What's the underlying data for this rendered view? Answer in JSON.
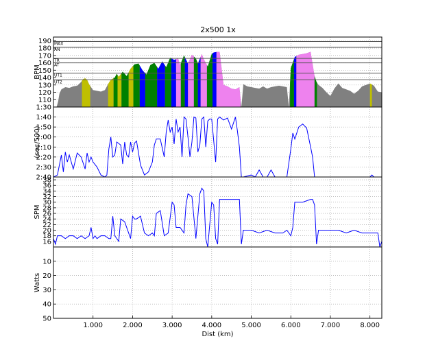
{
  "title": "2x500 1x",
  "colors": {
    "hr_fill": "#808080",
    "zone_ut2": "#bfbf00",
    "zone_ut1": "#008000",
    "zone_at": "#0000ff",
    "zone_tr": "#ee82ee",
    "line": "#0000ff",
    "grid": "#999999"
  },
  "chart_data": [
    {
      "type": "area",
      "ylabel": "BPM",
      "xlim": [
        0,
        8.3
      ],
      "ylim": [
        100,
        195
      ],
      "yticks": [
        110,
        120,
        130,
        140,
        150,
        160,
        170,
        180,
        190
      ],
      "zone_lines": [
        {
          "label": "MAX",
          "value": 189
        },
        {
          "label": "AN",
          "value": 181
        },
        {
          "label": "TR",
          "value": 166
        },
        {
          "label": "AT",
          "value": 160
        },
        {
          "label": "UT1",
          "value": 146
        },
        {
          "label": "UT2",
          "value": 137
        }
      ],
      "series": [
        {
          "x": [
            0.0,
            0.08,
            0.12,
            0.15,
            0.2,
            0.3,
            0.4,
            0.5,
            0.6,
            0.7,
            0.75,
            0.8,
            0.85,
            0.9,
            0.95,
            1.0,
            1.1,
            1.2,
            1.3,
            1.38,
            1.45,
            1.55,
            1.6,
            1.65,
            1.75,
            1.85,
            1.95,
            2.05,
            2.15,
            2.25,
            2.35,
            2.45,
            2.55,
            2.65,
            2.75,
            2.85,
            2.95,
            3.05,
            3.15,
            3.2,
            3.3,
            3.4,
            3.5,
            3.6,
            3.65,
            3.75,
            3.8,
            3.9,
            4.0,
            4.05,
            4.15,
            4.2,
            4.3,
            4.4,
            4.5,
            4.6,
            4.7,
            4.75,
            4.8,
            4.9,
            5.0,
            5.1,
            5.2,
            5.3,
            5.4,
            5.5,
            5.6,
            5.7,
            5.8,
            5.9,
            5.95,
            6.0,
            6.1,
            6.2,
            6.3,
            6.4,
            6.5,
            6.6,
            6.65,
            6.7,
            6.8,
            6.9,
            7.0,
            7.1,
            7.2,
            7.3,
            7.4,
            7.5,
            7.6,
            7.7,
            7.8,
            7.9,
            8.0,
            8.1,
            8.2,
            8.3
          ],
          "y": [
            100,
            100,
            108,
            118,
            124,
            127,
            126,
            128,
            129,
            134,
            138,
            139,
            137,
            131,
            127,
            123,
            122,
            121,
            123,
            131,
            137,
            140,
            145,
            141,
            148,
            142,
            152,
            158,
            159,
            150,
            144,
            157,
            160,
            152,
            162,
            154,
            167,
            164,
            166,
            157,
            170,
            159,
            171,
            166,
            159,
            172,
            165,
            155,
            172,
            174,
            175,
            175,
            130,
            128,
            125,
            124,
            127,
            100,
            131,
            128,
            127,
            126,
            125,
            128,
            125,
            127,
            128,
            129,
            128,
            127,
            100,
            153,
            168,
            171,
            172,
            173,
            175,
            142,
            134,
            130,
            126,
            120,
            115,
            125,
            132,
            126,
            124,
            122,
            118,
            122,
            128,
            130,
            132,
            129,
            121,
            120
          ]
        }
      ],
      "zones_shaded": [
        {
          "zone": "UT2",
          "x0": 0.72,
          "x1": 0.93
        },
        {
          "zone": "UT2",
          "x0": 1.38,
          "x1": 1.52
        },
        {
          "zone": "UT1",
          "x0": 1.52,
          "x1": 1.62
        },
        {
          "zone": "UT2",
          "x0": 1.62,
          "x1": 1.72
        },
        {
          "zone": "UT1",
          "x0": 1.72,
          "x1": 1.9
        },
        {
          "zone": "UT2",
          "x0": 1.9,
          "x1": 2.02
        },
        {
          "zone": "UT1",
          "x0": 2.02,
          "x1": 2.18
        },
        {
          "zone": "AT",
          "x0": 2.18,
          "x1": 2.32
        },
        {
          "zone": "UT1",
          "x0": 2.32,
          "x1": 2.62
        },
        {
          "zone": "AT",
          "x0": 2.62,
          "x1": 2.82
        },
        {
          "zone": "UT1",
          "x0": 2.82,
          "x1": 2.98
        },
        {
          "zone": "AT",
          "x0": 2.98,
          "x1": 3.1
        },
        {
          "zone": "TR",
          "x0": 3.1,
          "x1": 3.22
        },
        {
          "zone": "UT1",
          "x0": 3.22,
          "x1": 3.32
        },
        {
          "zone": "AT",
          "x0": 3.32,
          "x1": 3.4
        },
        {
          "zone": "TR",
          "x0": 3.4,
          "x1": 3.55
        },
        {
          "zone": "UT1",
          "x0": 3.55,
          "x1": 3.65
        },
        {
          "zone": "AT",
          "x0": 3.65,
          "x1": 3.72
        },
        {
          "zone": "TR",
          "x0": 3.72,
          "x1": 3.88
        },
        {
          "zone": "UT1",
          "x0": 3.88,
          "x1": 4.02
        },
        {
          "zone": "AT",
          "x0": 4.02,
          "x1": 4.12
        },
        {
          "zone": "TR",
          "x0": 4.12,
          "x1": 4.73
        },
        {
          "zone": "UT1",
          "x0": 5.98,
          "x1": 6.08
        },
        {
          "zone": "AT",
          "x0": 6.08,
          "x1": 6.14
        },
        {
          "zone": "TR",
          "x0": 6.14,
          "x1": 6.6
        },
        {
          "zone": "UT1",
          "x0": 6.6,
          "x1": 6.66
        },
        {
          "zone": "UT2",
          "x0": 8.0,
          "x1": 8.05
        }
      ]
    },
    {
      "type": "line",
      "ylabel": "(sec/500)",
      "xlim": [
        0,
        8.3
      ],
      "ylim": [
        160,
        90
      ],
      "yticks": [
        90,
        100,
        110,
        120,
        130,
        140,
        150,
        160
      ],
      "ytick_labels": [
        "1:30",
        "1:40",
        "1:50",
        "2:00",
        "2:10",
        "2:20",
        "2:30",
        "2:40"
      ],
      "series": [
        {
          "x": [
            0.0,
            0.1,
            0.15,
            0.2,
            0.25,
            0.3,
            0.35,
            0.4,
            0.5,
            0.6,
            0.7,
            0.8,
            0.85,
            0.9,
            0.95,
            1.0,
            1.1,
            1.2,
            1.3,
            1.35,
            1.4,
            1.45,
            1.5,
            1.55,
            1.6,
            1.7,
            1.75,
            1.8,
            1.85,
            1.9,
            1.95,
            2.0,
            2.05,
            2.1,
            2.2,
            2.3,
            2.4,
            2.5,
            2.55,
            2.6,
            2.7,
            2.8,
            2.85,
            2.9,
            2.95,
            3.0,
            3.05,
            3.1,
            3.15,
            3.2,
            3.25,
            3.3,
            3.35,
            3.4,
            3.45,
            3.5,
            3.55,
            3.6,
            3.65,
            3.7,
            3.75,
            3.8,
            3.85,
            3.9,
            3.95,
            4.0,
            4.1,
            4.15,
            4.2,
            4.3,
            4.4,
            4.5,
            4.6,
            4.65,
            4.7,
            4.75,
            4.8,
            5.0,
            5.1,
            5.2,
            5.3,
            5.4,
            5.5,
            5.6,
            5.7,
            5.8,
            5.9,
            6.0,
            6.05,
            6.1,
            6.2,
            6.3,
            6.4,
            6.5,
            6.55,
            6.6,
            6.65,
            6.7,
            6.8,
            7.0,
            7.2,
            7.4,
            7.6,
            7.8,
            8.0,
            8.05,
            8.1,
            8.2,
            8.3
          ],
          "y": [
            160,
            158,
            148,
            138,
            155,
            135,
            145,
            138,
            152,
            136,
            140,
            152,
            136,
            145,
            140,
            145,
            150,
            158,
            160,
            158,
            132,
            120,
            140,
            138,
            125,
            128,
            147,
            125,
            138,
            140,
            125,
            135,
            126,
            124,
            148,
            158,
            155,
            145,
            128,
            122,
            122,
            140,
            115,
            103,
            115,
            110,
            127,
            102,
            115,
            110,
            140,
            100,
            102,
            120,
            140,
            125,
            100,
            101,
            135,
            128,
            102,
            100,
            130,
            104,
            102,
            102,
            145,
            102,
            100,
            103,
            101,
            112,
            100,
            114,
            130,
            160,
            160,
            158,
            160,
            153,
            160,
            160,
            153,
            160,
            160,
            160,
            160,
            132,
            116,
            122,
            110,
            107,
            111,
            130,
            140,
            160,
            160,
            160,
            160,
            160,
            160,
            160,
            160,
            160,
            160,
            158,
            160,
            160,
            160
          ]
        }
      ]
    },
    {
      "type": "line",
      "ylabel": "SPM",
      "xlim": [
        0,
        8.3
      ],
      "ylim": [
        14,
        39
      ],
      "yticks": [
        16,
        18,
        20,
        22,
        24,
        26,
        28,
        30,
        32,
        34,
        36,
        38
      ],
      "series": [
        {
          "x": [
            0.0,
            0.05,
            0.1,
            0.2,
            0.3,
            0.4,
            0.5,
            0.6,
            0.7,
            0.8,
            0.9,
            0.95,
            1.0,
            1.05,
            1.1,
            1.2,
            1.3,
            1.4,
            1.45,
            1.5,
            1.55,
            1.6,
            1.65,
            1.7,
            1.8,
            1.9,
            1.95,
            2.0,
            2.05,
            2.1,
            2.2,
            2.3,
            2.4,
            2.5,
            2.55,
            2.6,
            2.7,
            2.8,
            2.9,
            3.0,
            3.05,
            3.1,
            3.2,
            3.3,
            3.35,
            3.4,
            3.5,
            3.6,
            3.7,
            3.75,
            3.8,
            3.85,
            3.9,
            4.0,
            4.05,
            4.1,
            4.15,
            4.2,
            4.4,
            4.6,
            4.7,
            4.75,
            4.8,
            5.0,
            5.2,
            5.4,
            5.6,
            5.8,
            5.9,
            6.0,
            6.05,
            6.1,
            6.3,
            6.5,
            6.55,
            6.6,
            6.65,
            6.7,
            7.0,
            7.2,
            7.4,
            7.6,
            7.8,
            8.0,
            8.2,
            8.25,
            8.3
          ],
          "y": [
            17,
            15,
            18,
            18,
            17,
            18,
            18,
            17,
            18,
            17,
            18,
            21,
            17,
            18,
            17,
            18,
            18,
            17,
            17,
            25,
            18,
            17,
            16,
            24,
            23,
            19,
            17,
            25,
            24,
            24,
            25,
            19,
            18,
            19,
            18,
            26,
            27,
            18,
            19,
            30,
            29,
            21,
            21,
            19,
            29,
            33,
            32,
            17,
            33,
            35,
            34,
            17,
            14,
            30,
            29,
            17,
            15,
            31,
            31,
            31,
            31,
            15,
            20,
            20,
            19,
            20,
            19,
            19,
            20,
            18,
            21,
            30,
            30,
            31,
            31,
            29,
            15,
            20,
            20,
            20,
            19,
            20,
            19,
            19,
            19,
            14,
            16
          ]
        }
      ]
    },
    {
      "type": "line",
      "xlabel": "Dist (km)",
      "ylabel": "Watts",
      "xlim": [
        0,
        8.3
      ],
      "ylim": [
        50,
        0
      ],
      "yticks": [
        10,
        20,
        30,
        40,
        50
      ],
      "xticks": [
        1,
        2,
        3,
        4,
        5,
        6,
        7,
        8
      ],
      "xtick_labels": [
        "1.000",
        "2.000",
        "3.000",
        "4.000",
        "5.000",
        "6.000",
        "7.000",
        "8.000"
      ],
      "series": [
        {
          "x": [],
          "y": []
        }
      ]
    }
  ]
}
